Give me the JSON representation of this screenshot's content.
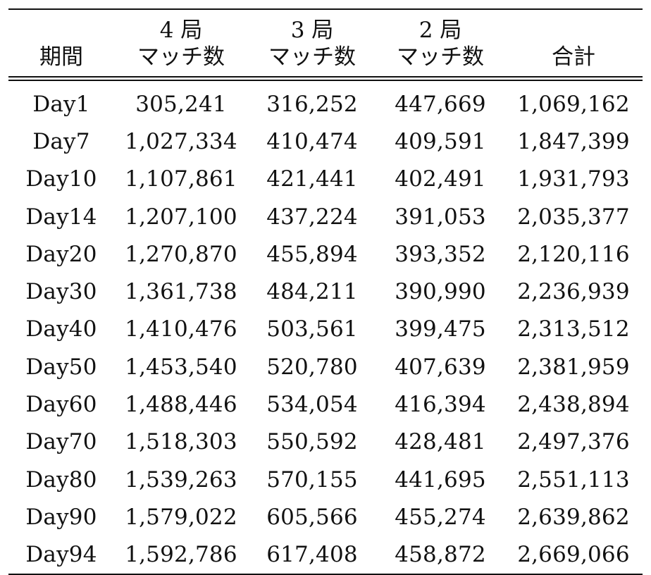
{
  "table": {
    "headers": [
      {
        "line1": "",
        "line2": "期間"
      },
      {
        "line1": "4 局",
        "line2": "マッチ数"
      },
      {
        "line1": "3 局",
        "line2": "マッチ数"
      },
      {
        "line1": "2 局",
        "line2": "マッチ数"
      },
      {
        "line1": "",
        "line2": "合計"
      }
    ],
    "rows": [
      [
        "Day1",
        "305,241",
        "316,252",
        "447,669",
        "1,069,162"
      ],
      [
        "Day7",
        "1,027,334",
        "410,474",
        "409,591",
        "1,847,399"
      ],
      [
        "Day10",
        "1,107,861",
        "421,441",
        "402,491",
        "1,931,793"
      ],
      [
        "Day14",
        "1,207,100",
        "437,224",
        "391,053",
        "2,035,377"
      ],
      [
        "Day20",
        "1,270,870",
        "455,894",
        "393,352",
        "2,120,116"
      ],
      [
        "Day30",
        "1,361,738",
        "484,211",
        "390,990",
        "2,236,939"
      ],
      [
        "Day40",
        "1,410,476",
        "503,561",
        "399,475",
        "2,313,512"
      ],
      [
        "Day50",
        "1,453,540",
        "520,780",
        "407,639",
        "2,381,959"
      ],
      [
        "Day60",
        "1,488,446",
        "534,054",
        "416,394",
        "2,438,894"
      ],
      [
        "Day70",
        "1,518,303",
        "550,592",
        "428,481",
        "2,497,376"
      ],
      [
        "Day80",
        "1,539,263",
        "570,155",
        "441,695",
        "2,551,113"
      ],
      [
        "Day90",
        "1,579,022",
        "605,566",
        "455,274",
        "2,639,862"
      ],
      [
        "Day94",
        "1,592,786",
        "617,408",
        "458,872",
        "2,669,066"
      ]
    ]
  }
}
